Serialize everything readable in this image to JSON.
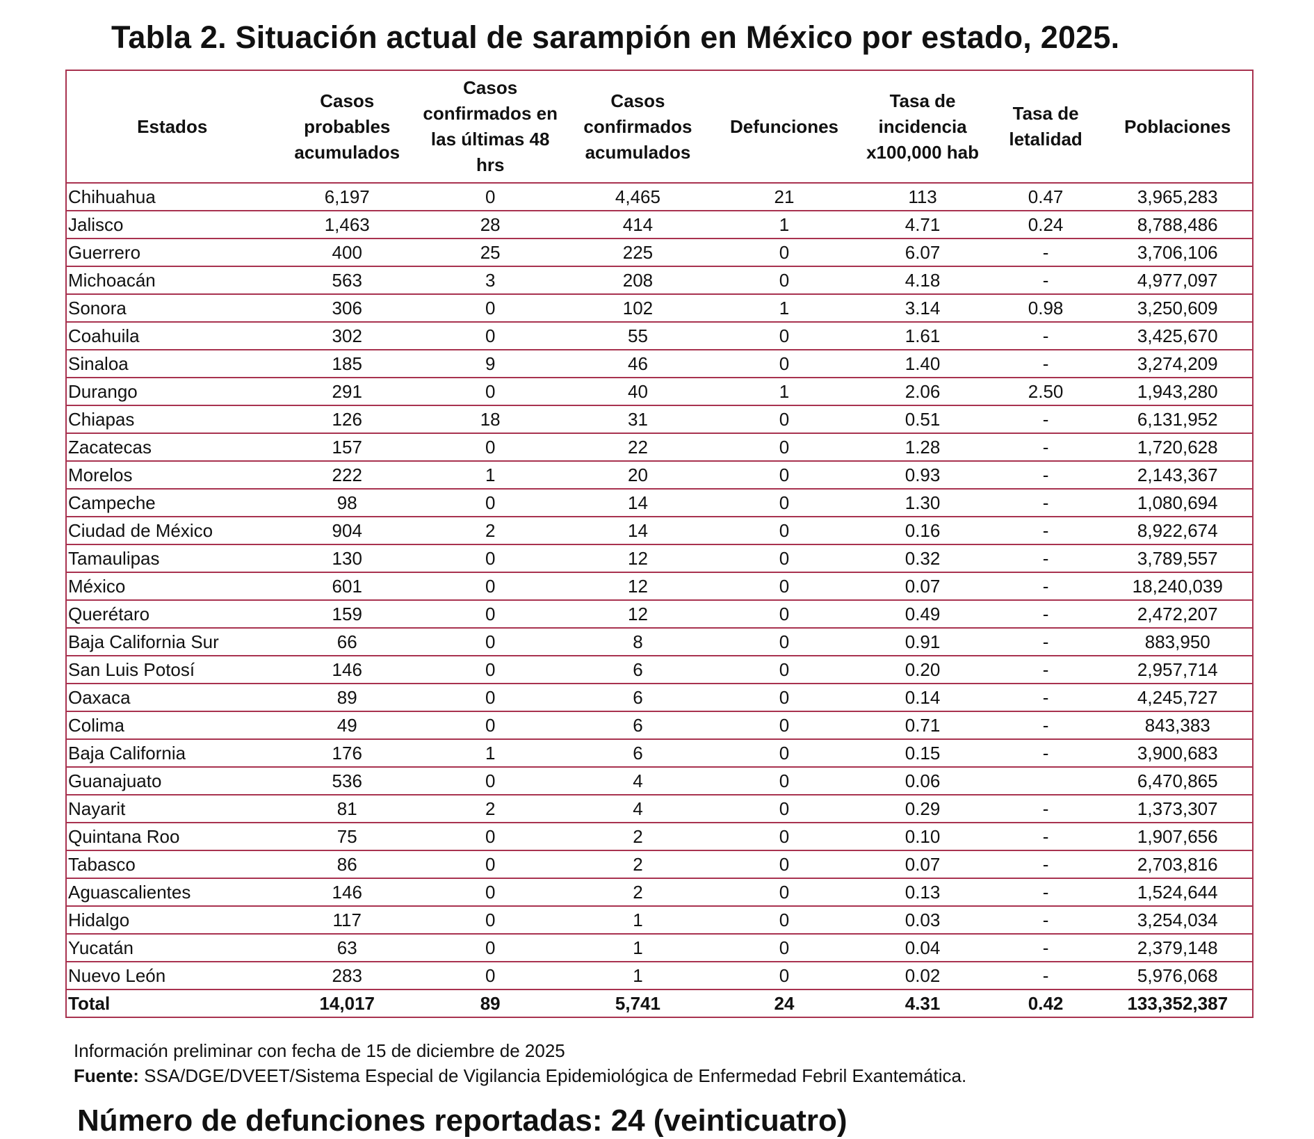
{
  "title": "Tabla 2. Situación actual de sarampión en México por estado, 2025.",
  "headers": [
    "Estados",
    "Casos probables acumulados",
    "Casos confirmados en las últimas 48 hrs",
    "Casos confirmados acumulados",
    "Defunciones",
    "Tasa de incidencia x100,000 hab",
    "Tasa de letalidad",
    "Poblaciones"
  ],
  "rows": [
    [
      "Chihuahua",
      "6,197",
      "0",
      "4,465",
      "21",
      "113",
      "0.47",
      "3,965,283"
    ],
    [
      "Jalisco",
      "1,463",
      "28",
      "414",
      "1",
      "4.71",
      "0.24",
      "8,788,486"
    ],
    [
      "Guerrero",
      "400",
      "25",
      "225",
      "0",
      "6.07",
      "-",
      "3,706,106"
    ],
    [
      "Michoacán",
      "563",
      "3",
      "208",
      "0",
      "4.18",
      "-",
      "4,977,097"
    ],
    [
      "Sonora",
      "306",
      "0",
      "102",
      "1",
      "3.14",
      "0.98",
      "3,250,609"
    ],
    [
      "Coahuila",
      "302",
      "0",
      "55",
      "0",
      "1.61",
      "-",
      "3,425,670"
    ],
    [
      "Sinaloa",
      "185",
      "9",
      "46",
      "0",
      "1.40",
      "-",
      "3,274,209"
    ],
    [
      "Durango",
      "291",
      "0",
      "40",
      "1",
      "2.06",
      "2.50",
      "1,943,280"
    ],
    [
      "Chiapas",
      "126",
      "18",
      "31",
      "0",
      "0.51",
      "-",
      "6,131,952"
    ],
    [
      "Zacatecas",
      "157",
      "0",
      "22",
      "0",
      "1.28",
      "-",
      "1,720,628"
    ],
    [
      "Morelos",
      "222",
      "1",
      "20",
      "0",
      "0.93",
      "-",
      "2,143,367"
    ],
    [
      "Campeche",
      "98",
      "0",
      "14",
      "0",
      "1.30",
      "-",
      "1,080,694"
    ],
    [
      "Ciudad de México",
      "904",
      "2",
      "14",
      "0",
      "0.16",
      "-",
      "8,922,674"
    ],
    [
      "Tamaulipas",
      "130",
      "0",
      "12",
      "0",
      "0.32",
      "-",
      "3,789,557"
    ],
    [
      "México",
      "601",
      "0",
      "12",
      "0",
      "0.07",
      "-",
      "18,240,039"
    ],
    [
      "Querétaro",
      "159",
      "0",
      "12",
      "0",
      "0.49",
      "-",
      "2,472,207"
    ],
    [
      "Baja California Sur",
      "66",
      "0",
      "8",
      "0",
      "0.91",
      "-",
      "883,950"
    ],
    [
      "San Luis Potosí",
      "146",
      "0",
      "6",
      "0",
      "0.20",
      "-",
      "2,957,714"
    ],
    [
      "Oaxaca",
      "89",
      "0",
      "6",
      "0",
      "0.14",
      "-",
      "4,245,727"
    ],
    [
      "Colima",
      "49",
      "0",
      "6",
      "0",
      "0.71",
      "-",
      "843,383"
    ],
    [
      "Baja California",
      "176",
      "1",
      "6",
      "0",
      "0.15",
      "-",
      "3,900,683"
    ],
    [
      "Guanajuato",
      "536",
      "0",
      "4",
      "0",
      "0.06",
      "",
      "6,470,865"
    ],
    [
      "Nayarit",
      "81",
      "2",
      "4",
      "0",
      "0.29",
      "-",
      "1,373,307"
    ],
    [
      "Quintana Roo",
      "75",
      "0",
      "2",
      "0",
      "0.10",
      "-",
      "1,907,656"
    ],
    [
      "Tabasco",
      "86",
      "0",
      "2",
      "0",
      "0.07",
      "-",
      "2,703,816"
    ],
    [
      "Aguascalientes",
      "146",
      "0",
      "2",
      "0",
      "0.13",
      "-",
      "1,524,644"
    ],
    [
      "Hidalgo",
      "117",
      "0",
      "1",
      "0",
      "0.03",
      "-",
      "3,254,034"
    ],
    [
      "Yucatán",
      "63",
      "0",
      "1",
      "0",
      "0.04",
      "-",
      "2,379,148"
    ],
    [
      "Nuevo León",
      "283",
      "0",
      "1",
      "0",
      "0.02",
      "-",
      "5,976,068"
    ]
  ],
  "total": [
    "Total",
    "14,017",
    "89",
    "5,741",
    "24",
    "4.31",
    "0.42",
    "133,352,387"
  ],
  "footer": {
    "note": "Información preliminar con fecha de 15 de diciembre de 2025",
    "source_label": "Fuente:",
    "source_text": " SSA/DGE/DVEET/Sistema Especial de Vigilancia Epidemiológica de Enfermedad Febril Exantemática.",
    "deaths": "Número de defunciones reportadas: 24 (veinticuatro)"
  },
  "colors": {
    "border": "#a8324f"
  }
}
